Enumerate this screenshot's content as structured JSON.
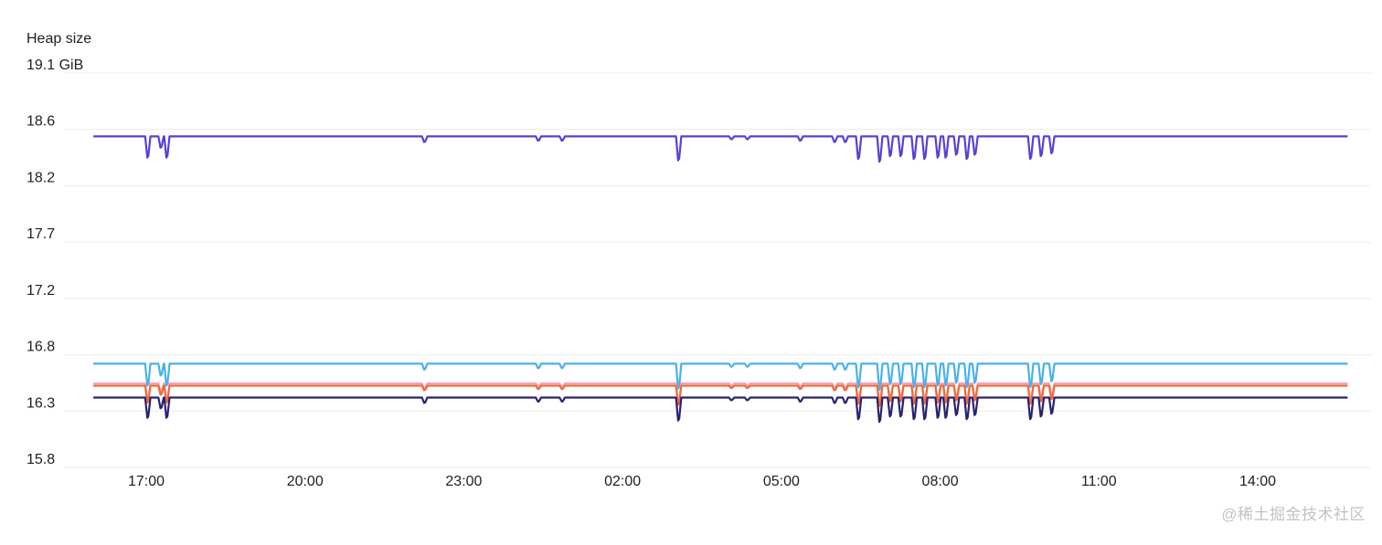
{
  "chart_data": {
    "type": "line",
    "title": "",
    "ylabel": "Heap size",
    "xlabel": "",
    "y_ticks": [
      {
        "value": 19.1,
        "label": "19.1 GiB"
      },
      {
        "value": 18.6,
        "label": "18.6"
      },
      {
        "value": 18.2,
        "label": "18.2"
      },
      {
        "value": 17.7,
        "label": "17.7"
      },
      {
        "value": 17.2,
        "label": "17.2"
      },
      {
        "value": 16.8,
        "label": "16.8"
      },
      {
        "value": 16.3,
        "label": "16.3"
      },
      {
        "value": 15.8,
        "label": "15.8"
      }
    ],
    "ylim": [
      15.8,
      19.1
    ],
    "xlim": [
      15.95,
      39.75
    ],
    "x_ticks": [
      {
        "value": 17,
        "label": "17:00"
      },
      {
        "value": 20,
        "label": "20:00"
      },
      {
        "value": 23,
        "label": "23:00"
      },
      {
        "value": 26,
        "label": "02:00"
      },
      {
        "value": 29,
        "label": "05:00"
      },
      {
        "value": 32,
        "label": "08:00"
      },
      {
        "value": 35,
        "label": "11:00"
      },
      {
        "value": 38,
        "label": "14:00"
      }
    ],
    "grid": true,
    "legend": "none",
    "dips": [
      {
        "x": 17.02,
        "depth": 0.15
      },
      {
        "x": 17.27,
        "depth": 0.08
      },
      {
        "x": 17.38,
        "depth": 0.15
      },
      {
        "x": 22.25,
        "depth": 0.04
      },
      {
        "x": 24.4,
        "depth": 0.03
      },
      {
        "x": 24.85,
        "depth": 0.03
      },
      {
        "x": 27.05,
        "depth": 0.17
      },
      {
        "x": 28.05,
        "depth": 0.02
      },
      {
        "x": 28.35,
        "depth": 0.02
      },
      {
        "x": 29.35,
        "depth": 0.03
      },
      {
        "x": 30.0,
        "depth": 0.04
      },
      {
        "x": 30.2,
        "depth": 0.04
      },
      {
        "x": 30.45,
        "depth": 0.16
      },
      {
        "x": 30.85,
        "depth": 0.18
      },
      {
        "x": 31.05,
        "depth": 0.14
      },
      {
        "x": 31.25,
        "depth": 0.14
      },
      {
        "x": 31.5,
        "depth": 0.16
      },
      {
        "x": 31.7,
        "depth": 0.16
      },
      {
        "x": 31.95,
        "depth": 0.15
      },
      {
        "x": 32.1,
        "depth": 0.15
      },
      {
        "x": 32.3,
        "depth": 0.13
      },
      {
        "x": 32.5,
        "depth": 0.16
      },
      {
        "x": 32.65,
        "depth": 0.13
      },
      {
        "x": 33.7,
        "depth": 0.16
      },
      {
        "x": 33.9,
        "depth": 0.14
      },
      {
        "x": 34.1,
        "depth": 0.12
      }
    ],
    "series": [
      {
        "color": "#5a3fd6",
        "base": 18.55,
        "dip_scale": 1.0,
        "xstart": 16.0,
        "xend": 39.7
      },
      {
        "color": "#4ab1ec",
        "base": 16.72,
        "dip_scale": 1.3,
        "xstart": 16.0,
        "xend": 39.7
      },
      {
        "color": "#f4a3b3",
        "base": 16.545,
        "dip_scale": 1.0,
        "xstart": 16.0,
        "xend": 39.7
      },
      {
        "color": "#ef6a3a",
        "base": 16.525,
        "dip_scale": 1.0,
        "xstart": 16.0,
        "xend": 39.7
      },
      {
        "color": "#2a2270",
        "base": 16.42,
        "dip_scale": 1.2,
        "xstart": 16.0,
        "xend": 39.7
      }
    ]
  },
  "watermark": "@稀土掘金技术社区"
}
